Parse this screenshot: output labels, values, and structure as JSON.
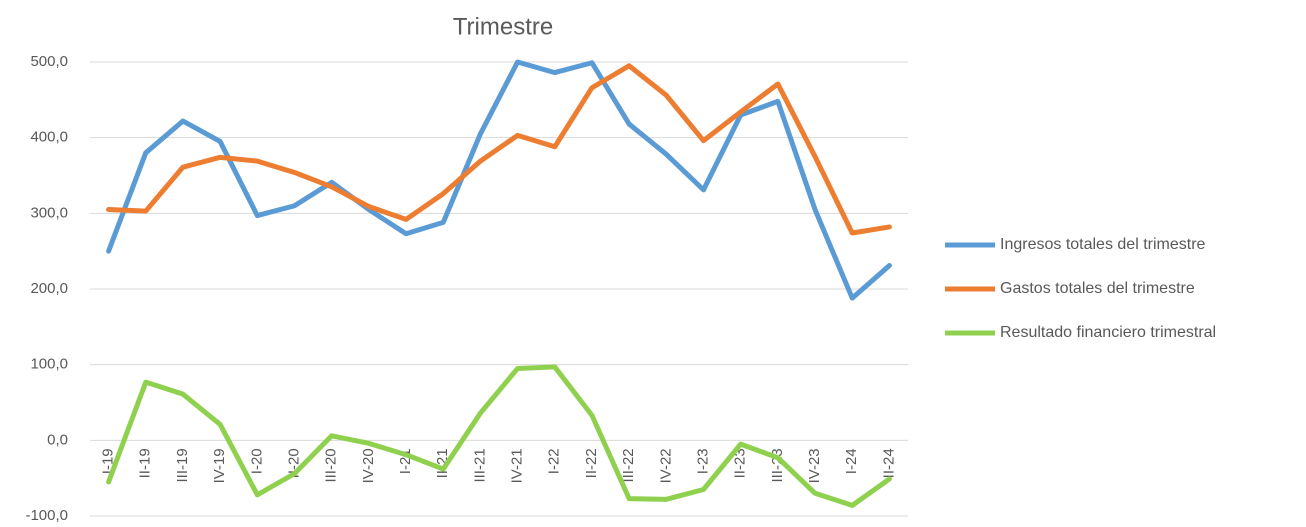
{
  "chart_data": {
    "type": "line",
    "title": "Trimestre",
    "categories": [
      "I-19",
      "II-19",
      "III-19",
      "IV-19",
      "I-20",
      "II-20",
      "III-20",
      "IV-20",
      "I-21",
      "II-21",
      "III-21",
      "IV-21",
      "I-22",
      "II-22",
      "III-22",
      "IV-22",
      "I-23",
      "II-23",
      "III-23",
      "IV-23",
      "I-24",
      "II-24"
    ],
    "series": [
      {
        "name": "Ingresos totales del trimestre",
        "color": "#5b9bd5",
        "values": [
          250,
          380,
          422,
          395,
          297,
          310,
          341,
          305,
          273,
          288,
          405,
          500,
          486,
          499,
          418,
          378,
          331,
          430,
          448,
          305,
          188,
          231
        ]
      },
      {
        "name": "Gastos totales del trimestre",
        "color": "#ed7d31",
        "values": [
          305,
          303,
          361,
          374,
          369,
          354,
          335,
          309,
          292,
          326,
          369,
          403,
          388,
          466,
          495,
          456,
          396,
          434,
          471,
          375,
          274,
          282
        ]
      },
      {
        "name": "Resultado financiero trimestral",
        "color": "#8fd14f",
        "values": [
          -55,
          77,
          61,
          21,
          -72,
          -44,
          6,
          -4,
          -19,
          -38,
          36,
          95,
          97,
          33,
          -77,
          -78,
          -65,
          -5,
          -23,
          -70,
          -86,
          -51
        ]
      }
    ],
    "ylim": [
      -100,
      500
    ],
    "yticks": [
      {
        "value": -100,
        "label": "-100,0"
      },
      {
        "value": 0,
        "label": "0,0"
      },
      {
        "value": 100,
        "label": "100,0"
      },
      {
        "value": 200,
        "label": "200,0"
      },
      {
        "value": 300,
        "label": "300,0"
      },
      {
        "value": 400,
        "label": "400,0"
      },
      {
        "value": 500,
        "label": "500,0"
      }
    ],
    "grid": true,
    "legend": "right"
  }
}
